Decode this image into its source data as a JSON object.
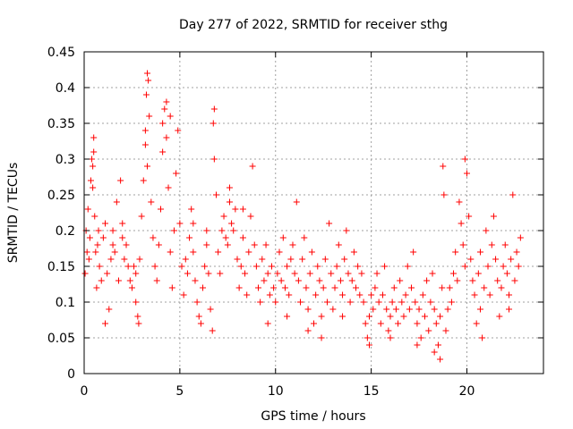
{
  "chart_data": {
    "type": "scatter",
    "title": "Day 277 of 2022, SRMTID for receiver sthg",
    "xlabel": "GPS time / hours",
    "ylabel": "SRMTID / TECUs",
    "xlim": [
      0,
      24
    ],
    "ylim": [
      0,
      0.45
    ],
    "xticks": [
      0,
      5,
      10,
      15,
      20
    ],
    "xtick_labels": [
      "0",
      "5",
      "10",
      "15",
      "20"
    ],
    "yticks": [
      0,
      0.05,
      0.1,
      0.15,
      0.2,
      0.25,
      0.3,
      0.35,
      0.4,
      0.45
    ],
    "ytick_labels": [
      "0",
      "0.05",
      "0.1",
      "0.15",
      "0.2",
      "0.25",
      "0.3",
      "0.35",
      "0.4",
      "0.45"
    ],
    "grid": true,
    "marker": "+",
    "marker_color": "#ff0000",
    "series": [
      {
        "name": "SRMTID",
        "points": [
          [
            0.05,
            0.14
          ],
          [
            0.1,
            0.2
          ],
          [
            0.15,
            0.17
          ],
          [
            0.2,
            0.23
          ],
          [
            0.25,
            0.16
          ],
          [
            0.3,
            0.19
          ],
          [
            0.35,
            0.27
          ],
          [
            0.4,
            0.3
          ],
          [
            0.45,
            0.26
          ],
          [
            0.5,
            0.33
          ],
          [
            0.55,
            0.22
          ],
          [
            0.6,
            0.17
          ],
          [
            0.65,
            0.12
          ],
          [
            0.7,
            0.18
          ],
          [
            0.75,
            0.2
          ],
          [
            0.8,
            0.15
          ],
          [
            0.9,
            0.13
          ],
          [
            1.0,
            0.19
          ],
          [
            1.1,
            0.21
          ],
          [
            1.2,
            0.14
          ],
          [
            1.3,
            0.09
          ],
          [
            1.4,
            0.16
          ],
          [
            1.5,
            0.2
          ],
          [
            1.6,
            0.17
          ],
          [
            1.7,
            0.24
          ],
          [
            1.8,
            0.13
          ],
          [
            1.9,
            0.27
          ],
          [
            2.0,
            0.19
          ],
          [
            2.1,
            0.16
          ],
          [
            2.2,
            0.18
          ],
          [
            2.3,
            0.15
          ],
          [
            2.4,
            0.13
          ],
          [
            2.5,
            0.12
          ],
          [
            2.6,
            0.15
          ],
          [
            2.7,
            0.14
          ],
          [
            2.8,
            0.08
          ],
          [
            2.85,
            0.07
          ],
          [
            2.9,
            0.16
          ],
          [
            3.0,
            0.22
          ],
          [
            3.1,
            0.27
          ],
          [
            3.2,
            0.34
          ],
          [
            3.3,
            0.29
          ],
          [
            3.35,
            0.41
          ],
          [
            3.4,
            0.36
          ],
          [
            3.5,
            0.24
          ],
          [
            3.6,
            0.19
          ],
          [
            3.7,
            0.15
          ],
          [
            3.8,
            0.13
          ],
          [
            3.9,
            0.18
          ],
          [
            4.0,
            0.23
          ],
          [
            4.1,
            0.31
          ],
          [
            4.2,
            0.37
          ],
          [
            4.3,
            0.33
          ],
          [
            4.4,
            0.26
          ],
          [
            4.5,
            0.17
          ],
          [
            4.6,
            0.12
          ],
          [
            4.7,
            0.2
          ],
          [
            4.8,
            0.28
          ],
          [
            4.9,
            0.34
          ],
          [
            5.0,
            0.21
          ],
          [
            5.1,
            0.15
          ],
          [
            5.2,
            0.11
          ],
          [
            5.3,
            0.16
          ],
          [
            5.4,
            0.14
          ],
          [
            5.5,
            0.19
          ],
          [
            5.6,
            0.23
          ],
          [
            5.7,
            0.17
          ],
          [
            5.8,
            0.13
          ],
          [
            5.9,
            0.1
          ],
          [
            6.0,
            0.08
          ],
          [
            6.1,
            0.07
          ],
          [
            6.2,
            0.12
          ],
          [
            6.3,
            0.15
          ],
          [
            6.4,
            0.18
          ],
          [
            6.5,
            0.14
          ],
          [
            6.6,
            0.09
          ],
          [
            6.7,
            0.06
          ],
          [
            6.75,
            0.35
          ],
          [
            6.8,
            0.3
          ],
          [
            6.9,
            0.25
          ],
          [
            7.0,
            0.17
          ],
          [
            7.1,
            0.14
          ],
          [
            7.2,
            0.2
          ],
          [
            7.3,
            0.22
          ],
          [
            7.4,
            0.19
          ],
          [
            7.5,
            0.18
          ],
          [
            7.6,
            0.24
          ],
          [
            7.7,
            0.21
          ],
          [
            7.8,
            0.2
          ],
          [
            7.9,
            0.23
          ],
          [
            8.0,
            0.16
          ],
          [
            8.1,
            0.12
          ],
          [
            8.2,
            0.15
          ],
          [
            8.3,
            0.19
          ],
          [
            8.4,
            0.14
          ],
          [
            8.5,
            0.11
          ],
          [
            8.6,
            0.17
          ],
          [
            8.7,
            0.22
          ],
          [
            8.8,
            0.29
          ],
          [
            8.9,
            0.18
          ],
          [
            9.0,
            0.15
          ],
          [
            9.1,
            0.12
          ],
          [
            9.2,
            0.1
          ],
          [
            9.3,
            0.16
          ],
          [
            9.4,
            0.13
          ],
          [
            9.5,
            0.18
          ],
          [
            9.6,
            0.14
          ],
          [
            9.7,
            0.11
          ],
          [
            9.8,
            0.15
          ],
          [
            9.9,
            0.12
          ],
          [
            10.0,
            0.1
          ],
          [
            10.1,
            0.14
          ],
          [
            10.2,
            0.17
          ],
          [
            10.3,
            0.13
          ],
          [
            10.4,
            0.19
          ],
          [
            10.5,
            0.12
          ],
          [
            10.6,
            0.15
          ],
          [
            10.7,
            0.11
          ],
          [
            10.8,
            0.16
          ],
          [
            10.9,
            0.18
          ],
          [
            11.0,
            0.14
          ],
          [
            11.1,
            0.24
          ],
          [
            11.2,
            0.13
          ],
          [
            11.3,
            0.1
          ],
          [
            11.4,
            0.16
          ],
          [
            11.5,
            0.19
          ],
          [
            11.6,
            0.12
          ],
          [
            11.7,
            0.09
          ],
          [
            11.8,
            0.14
          ],
          [
            11.9,
            0.17
          ],
          [
            12.0,
            0.07
          ],
          [
            12.1,
            0.11
          ],
          [
            12.2,
            0.15
          ],
          [
            12.3,
            0.13
          ],
          [
            12.4,
            0.08
          ],
          [
            12.5,
            0.12
          ],
          [
            12.6,
            0.16
          ],
          [
            12.7,
            0.1
          ],
          [
            12.8,
            0.21
          ],
          [
            12.9,
            0.14
          ],
          [
            13.0,
            0.09
          ],
          [
            13.1,
            0.12
          ],
          [
            13.2,
            0.15
          ],
          [
            13.3,
            0.18
          ],
          [
            13.4,
            0.13
          ],
          [
            13.5,
            0.11
          ],
          [
            13.6,
            0.16
          ],
          [
            13.7,
            0.2
          ],
          [
            13.8,
            0.14
          ],
          [
            13.9,
            0.1
          ],
          [
            14.0,
            0.13
          ],
          [
            14.1,
            0.17
          ],
          [
            14.2,
            0.12
          ],
          [
            14.3,
            0.15
          ],
          [
            14.4,
            0.11
          ],
          [
            14.5,
            0.14
          ],
          [
            14.6,
            0.1
          ],
          [
            14.7,
            0.07
          ],
          [
            14.8,
            0.05
          ],
          [
            14.9,
            0.08
          ],
          [
            15.0,
            0.11
          ],
          [
            15.1,
            0.09
          ],
          [
            15.2,
            0.12
          ],
          [
            15.3,
            0.14
          ],
          [
            15.4,
            0.1
          ],
          [
            15.5,
            0.07
          ],
          [
            15.6,
            0.11
          ],
          [
            15.7,
            0.15
          ],
          [
            15.8,
            0.09
          ],
          [
            15.9,
            0.06
          ],
          [
            16.0,
            0.08
          ],
          [
            16.1,
            0.1
          ],
          [
            16.2,
            0.12
          ],
          [
            16.3,
            0.09
          ],
          [
            16.4,
            0.07
          ],
          [
            16.5,
            0.13
          ],
          [
            16.6,
            0.1
          ],
          [
            16.7,
            0.08
          ],
          [
            16.8,
            0.11
          ],
          [
            16.9,
            0.15
          ],
          [
            17.0,
            0.09
          ],
          [
            17.1,
            0.12
          ],
          [
            17.2,
            0.17
          ],
          [
            17.3,
            0.1
          ],
          [
            17.4,
            0.07
          ],
          [
            17.5,
            0.09
          ],
          [
            17.6,
            0.05
          ],
          [
            17.7,
            0.11
          ],
          [
            17.8,
            0.08
          ],
          [
            17.9,
            0.13
          ],
          [
            18.0,
            0.06
          ],
          [
            18.1,
            0.1
          ],
          [
            18.2,
            0.14
          ],
          [
            18.3,
            0.09
          ],
          [
            18.4,
            0.07
          ],
          [
            18.5,
            0.04
          ],
          [
            18.6,
            0.08
          ],
          [
            18.7,
            0.12
          ],
          [
            18.75,
            0.29
          ],
          [
            18.8,
            0.25
          ],
          [
            18.9,
            0.06
          ],
          [
            19.0,
            0.09
          ],
          [
            19.1,
            0.12
          ],
          [
            19.2,
            0.1
          ],
          [
            19.3,
            0.14
          ],
          [
            19.4,
            0.17
          ],
          [
            19.5,
            0.13
          ],
          [
            19.6,
            0.24
          ],
          [
            19.7,
            0.21
          ],
          [
            19.8,
            0.18
          ],
          [
            19.9,
            0.15
          ],
          [
            20.0,
            0.28
          ],
          [
            20.1,
            0.22
          ],
          [
            20.2,
            0.16
          ],
          [
            20.3,
            0.13
          ],
          [
            20.4,
            0.11
          ],
          [
            20.5,
            0.07
          ],
          [
            20.6,
            0.14
          ],
          [
            20.7,
            0.17
          ],
          [
            20.8,
            0.05
          ],
          [
            20.9,
            0.12
          ],
          [
            21.0,
            0.2
          ],
          [
            21.1,
            0.15
          ],
          [
            21.2,
            0.11
          ],
          [
            21.3,
            0.18
          ],
          [
            21.4,
            0.22
          ],
          [
            21.5,
            0.16
          ],
          [
            21.6,
            0.13
          ],
          [
            21.7,
            0.08
          ],
          [
            21.8,
            0.12
          ],
          [
            21.9,
            0.15
          ],
          [
            22.0,
            0.18
          ],
          [
            22.1,
            0.14
          ],
          [
            22.2,
            0.11
          ],
          [
            22.3,
            0.16
          ],
          [
            22.4,
            0.25
          ],
          [
            22.5,
            0.13
          ],
          [
            22.6,
            0.17
          ],
          [
            22.7,
            0.15
          ],
          [
            22.8,
            0.19
          ],
          [
            0.5,
            0.31
          ],
          [
            3.25,
            0.39
          ],
          [
            3.3,
            0.42
          ],
          [
            4.3,
            0.38
          ],
          [
            4.5,
            0.36
          ],
          [
            6.8,
            0.37
          ],
          [
            3.2,
            0.32
          ],
          [
            4.1,
            0.35
          ],
          [
            0.45,
            0.29
          ],
          [
            19.9,
            0.3
          ],
          [
            2.0,
            0.21
          ],
          [
            1.5,
            0.18
          ],
          [
            7.6,
            0.26
          ],
          [
            12.4,
            0.05
          ],
          [
            14.9,
            0.04
          ],
          [
            18.3,
            0.03
          ],
          [
            18.6,
            0.02
          ],
          [
            16.0,
            0.05
          ],
          [
            17.4,
            0.04
          ],
          [
            20.7,
            0.09
          ],
          [
            22.2,
            0.09
          ],
          [
            9.6,
            0.07
          ],
          [
            10.6,
            0.08
          ],
          [
            11.7,
            0.06
          ],
          [
            13.5,
            0.08
          ],
          [
            8.3,
            0.23
          ],
          [
            5.7,
            0.21
          ],
          [
            6.4,
            0.2
          ],
          [
            2.7,
            0.1
          ],
          [
            1.1,
            0.07
          ]
        ]
      }
    ]
  }
}
